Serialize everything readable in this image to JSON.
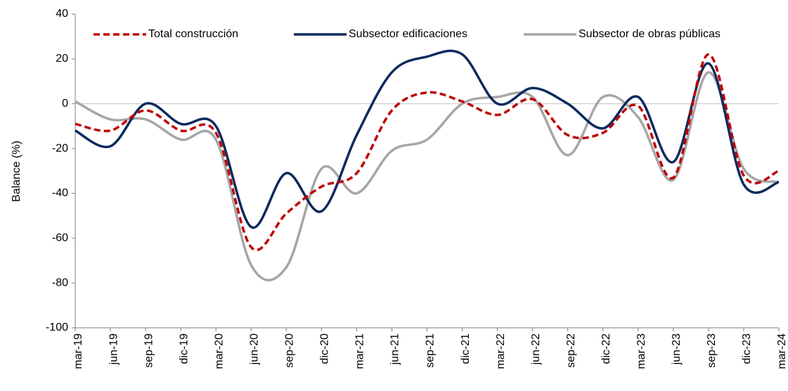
{
  "chart_data": {
    "type": "line",
    "y_label": "Balance (%)",
    "categories": [
      "mar-19",
      "jun-19",
      "sep-19",
      "dic-19",
      "mar-20",
      "jun-20",
      "sep-20",
      "dic-20",
      "mar-21",
      "jun-21",
      "sep-21",
      "dic-21",
      "mar-22",
      "jun-22",
      "sep-22",
      "dic-22",
      "mar-23",
      "jun-23",
      "sep-23",
      "dic-23",
      "mar-24"
    ],
    "series": [
      {
        "name": "Total construcción",
        "color": "#c00000",
        "dashed": true,
        "values": [
          -9,
          -12,
          -3,
          -12,
          -13,
          -64,
          -49,
          -37,
          -31,
          -3,
          5,
          1,
          -5,
          2,
          -14,
          -13,
          -1,
          -33,
          22,
          -32,
          -30
        ]
      },
      {
        "name": "Subsector edificaciones",
        "color": "#0b2a5e",
        "dashed": false,
        "values": [
          -12,
          -19,
          0,
          -9,
          -10,
          -55,
          -31,
          -48,
          -14,
          14,
          21,
          22,
          0,
          7,
          0,
          -11,
          3,
          -26,
          18,
          -36,
          -35
        ]
      },
      {
        "name": "Subsector de obras públicas",
        "color": "#a6a6a6",
        "dashed": false,
        "values": [
          1,
          -7,
          -7,
          -16,
          -16,
          -72,
          -73,
          -29,
          -40,
          -21,
          -16,
          0,
          3,
          3,
          -23,
          3,
          -6,
          -34,
          14,
          -29,
          -35
        ]
      }
    ],
    "ylim": [
      -100,
      40
    ],
    "yticks": [
      -100,
      -80,
      -60,
      -40,
      -20,
      0,
      20,
      40
    ],
    "legend": "top",
    "grid": false
  }
}
